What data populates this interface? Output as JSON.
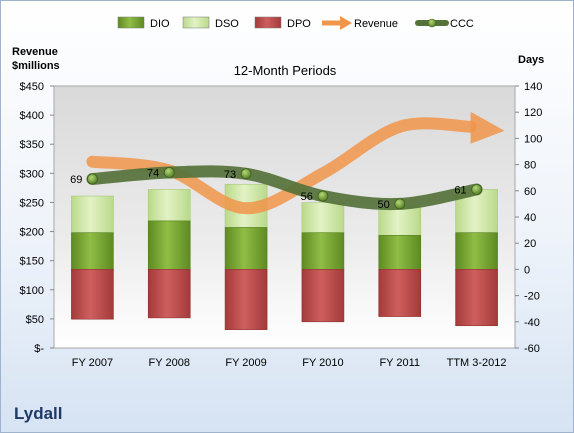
{
  "company": "Lydall",
  "chart_data": {
    "type": "bar",
    "subtitle": "12-Month Periods",
    "left_axis": {
      "title_line1": "Revenue",
      "title_line2": "$millions",
      "min": 0,
      "max": 450,
      "step": 50,
      "format": "currency"
    },
    "right_axis": {
      "title": "Days",
      "min": -60,
      "max": 140,
      "step": 20
    },
    "categories": [
      "FY 2007",
      "FY 2008",
      "FY 2009",
      "FY 2010",
      "FY 2011",
      "TTM 3-2012"
    ],
    "series": [
      {
        "name": "DIO",
        "kind": "stacked-bar",
        "axis": "right",
        "color": "#77a033",
        "values": [
          28,
          37,
          32,
          28,
          26,
          28
        ]
      },
      {
        "name": "DSO",
        "kind": "stacked-bar",
        "axis": "right",
        "color": "#cfe7a1",
        "values": [
          28,
          24,
          33,
          23,
          22,
          33
        ]
      },
      {
        "name": "DPO",
        "kind": "negative-bar",
        "axis": "right",
        "color": "#bf4b4b",
        "values": [
          -38,
          -37,
          -46,
          -40,
          -36,
          -43
        ]
      },
      {
        "name": "Revenue",
        "kind": "trend-arrow",
        "axis": "left",
        "color": "#f0954a",
        "values": [
          320,
          305,
          240,
          300,
          380,
          380
        ]
      },
      {
        "name": "CCC",
        "kind": "line",
        "axis": "right",
        "color": "#55723a",
        "values": [
          69,
          74,
          73,
          56,
          50,
          61
        ],
        "labels": [
          "69",
          "74",
          "73",
          "56",
          "50",
          "61"
        ]
      }
    ],
    "legend_position": "top",
    "grid": false
  }
}
